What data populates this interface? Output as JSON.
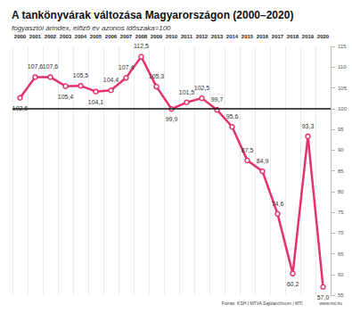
{
  "chart_data": {
    "type": "line",
    "title": "A tankönyvárak változása Magyarországon (2000–2020)",
    "subtitle": "fogyasztói árindex, előző év azonos időszaka=100",
    "source": "Forrás: KSH | MTVA Sajtóarchívum | MTI",
    "website": "www.mti.hu",
    "categories": [
      "2000",
      "2001",
      "2002",
      "2003",
      "2004",
      "2005",
      "2006",
      "2007",
      "2008",
      "2009",
      "2010",
      "2011",
      "2012",
      "2013",
      "2014",
      "2015",
      "2016",
      "2017",
      "2018",
      "2019",
      "2020"
    ],
    "values": [
      102.6,
      107.6,
      107.6,
      105.4,
      105.5,
      104.1,
      104.4,
      107.4,
      112.5,
      105.3,
      99.9,
      101.5,
      102.5,
      99.7,
      95.6,
      87.5,
      84.9,
      74.6,
      60.2,
      93.3,
      57.0
    ],
    "value_labels": [
      "102,6",
      "107,6",
      "107,6",
      "105,4",
      "105,5",
      "104,1",
      "104,4",
      "107,4",
      "112,5",
      "105,3",
      "99,9",
      "101,5",
      "102,5",
      "99,7",
      "95,6",
      "87,5",
      "84,9",
      "74,6",
      "60,2",
      "93,3",
      "57,0"
    ],
    "reference_line": 100,
    "color": "#e4336a",
    "ylim": [
      55,
      115
    ],
    "yticks": [
      55,
      60,
      65,
      70,
      75,
      80,
      85,
      90,
      95,
      100,
      105,
      110,
      115
    ],
    "grid": true,
    "data_labels": true,
    "marker": "circle"
  }
}
